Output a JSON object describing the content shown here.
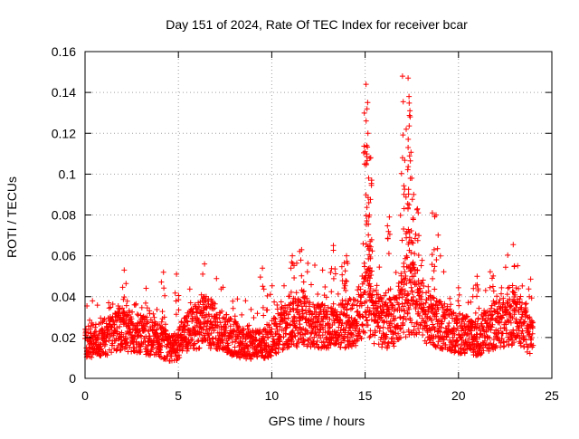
{
  "chart_data": {
    "type": "scatter",
    "title": "Day 151 of 2024, Rate Of TEC Index for receiver bcar",
    "xlabel": "GPS time / hours",
    "ylabel": "ROTI / TECUs",
    "xlim": [
      0,
      25
    ],
    "ylim": [
      0,
      0.16
    ],
    "xticks": [
      0,
      5,
      10,
      15,
      20,
      25
    ],
    "yticks": [
      0,
      0.02,
      0.04,
      0.06,
      0.08,
      0.1,
      0.12,
      0.14,
      0.16
    ],
    "xtick_labels": [
      "0",
      "5",
      "10",
      "15",
      "20",
      "25"
    ],
    "ytick_labels": [
      "0",
      "0.02",
      "0.04",
      "0.06",
      "0.08",
      "0.1",
      "0.12",
      "0.14",
      "0.16"
    ],
    "grid": true,
    "marker": "+",
    "series": [
      {
        "name": "ROTI",
        "color": "#ff0000",
        "profile": {
          "description": "approximate running baseline (hours, TECU)",
          "x": [
            0,
            1,
            2,
            3,
            4,
            4.8,
            5.2,
            6,
            6.5,
            7.5,
            8.5,
            9.5,
            10.5,
            11.5,
            12.5,
            13.5,
            14.5,
            15,
            15.5,
            16,
            16.5,
            17,
            17.5,
            18,
            18.5,
            19,
            20,
            21,
            22,
            23,
            24
          ],
          "y": [
            0.018,
            0.02,
            0.024,
            0.022,
            0.018,
            0.014,
            0.02,
            0.026,
            0.028,
            0.022,
            0.017,
            0.016,
            0.024,
            0.028,
            0.026,
            0.025,
            0.028,
            0.04,
            0.03,
            0.026,
            0.028,
            0.035,
            0.04,
            0.035,
            0.028,
            0.026,
            0.022,
            0.02,
            0.026,
            0.03,
            0.02
          ]
        },
        "peaks": [
          {
            "x": 2.1,
            "y": 0.053
          },
          {
            "x": 4.2,
            "y": 0.052
          },
          {
            "x": 4.9,
            "y": 0.051
          },
          {
            "x": 6.4,
            "y": 0.056
          },
          {
            "x": 9.5,
            "y": 0.054
          },
          {
            "x": 11.1,
            "y": 0.06
          },
          {
            "x": 11.6,
            "y": 0.063
          },
          {
            "x": 13.3,
            "y": 0.065
          },
          {
            "x": 14.0,
            "y": 0.06
          },
          {
            "x": 15.0,
            "y": 0.111
          },
          {
            "x": 15.05,
            "y": 0.144
          },
          {
            "x": 15.1,
            "y": 0.132
          },
          {
            "x": 15.15,
            "y": 0.12
          },
          {
            "x": 15.3,
            "y": 0.108
          },
          {
            "x": 15.35,
            "y": 0.097
          },
          {
            "x": 15.2,
            "y": 0.086
          },
          {
            "x": 15.2,
            "y": 0.079
          },
          {
            "x": 16.3,
            "y": 0.079
          },
          {
            "x": 17.0,
            "y": 0.148
          },
          {
            "x": 17.3,
            "y": 0.147
          },
          {
            "x": 17.35,
            "y": 0.138
          },
          {
            "x": 17.4,
            "y": 0.131
          },
          {
            "x": 17.2,
            "y": 0.122
          },
          {
            "x": 17.3,
            "y": 0.113
          },
          {
            "x": 17.0,
            "y": 0.108
          },
          {
            "x": 17.5,
            "y": 0.098
          },
          {
            "x": 17.6,
            "y": 0.09
          },
          {
            "x": 17.8,
            "y": 0.083
          },
          {
            "x": 18.6,
            "y": 0.081
          },
          {
            "x": 18.8,
            "y": 0.08
          },
          {
            "x": 20.8,
            "y": 0.044
          },
          {
            "x": 21.0,
            "y": 0.05
          },
          {
            "x": 23.0,
            "y": 0.055
          }
        ]
      }
    ]
  }
}
